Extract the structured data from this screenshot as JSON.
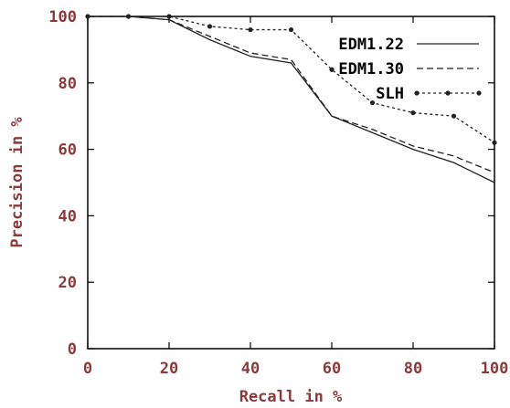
{
  "chart_data": {
    "type": "line",
    "title": "",
    "xlabel": "Recall in %",
    "ylabel": "Precision in %",
    "xlim": [
      0,
      100
    ],
    "ylim": [
      0,
      100
    ],
    "x_ticks": [
      0,
      20,
      40,
      60,
      80,
      100
    ],
    "y_ticks": [
      0,
      20,
      40,
      60,
      80,
      100
    ],
    "grid": false,
    "legend_position": "top-right",
    "series": [
      {
        "name": "EDM1.22",
        "style": "solid",
        "markers": false,
        "x": [
          0,
          10,
          20,
          30,
          40,
          50,
          60,
          70,
          80,
          90,
          100
        ],
        "y": [
          100,
          100,
          99,
          93,
          88,
          86,
          70,
          65,
          60,
          56,
          50
        ]
      },
      {
        "name": "EDM1.30",
        "style": "dashed",
        "markers": false,
        "x": [
          0,
          10,
          20,
          30,
          40,
          50,
          60,
          70,
          80,
          90,
          100
        ],
        "y": [
          100,
          100,
          99,
          94,
          89,
          87,
          70,
          66,
          61,
          58,
          53
        ]
      },
      {
        "name": "SLH",
        "style": "dotted",
        "markers": true,
        "x": [
          0,
          10,
          20,
          30,
          40,
          50,
          60,
          70,
          80,
          90,
          100
        ],
        "y": [
          100,
          100,
          100,
          97,
          96,
          96,
          84,
          74,
          71,
          70,
          62
        ]
      }
    ]
  },
  "colors": {
    "axis": "#000000",
    "label_text": "#8b3a3a",
    "series_line": "#222222"
  }
}
